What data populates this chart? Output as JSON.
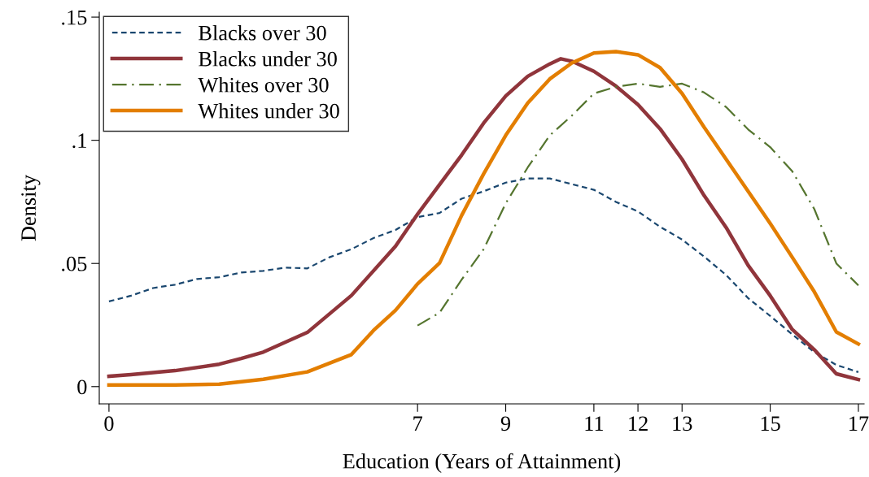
{
  "chart_data": {
    "type": "line",
    "xlabel": "Education (Years of Attainment)",
    "ylabel": "Density",
    "xlim": [
      -0.22,
      17.13
    ],
    "ylim": [
      -0.007,
      0.152
    ],
    "xticks": [
      0,
      7,
      9,
      11,
      12,
      13,
      15,
      17
    ],
    "yticks": [
      {
        "value": 0,
        "label": "0"
      },
      {
        "value": 0.05,
        "label": ".05"
      },
      {
        "value": 0.1,
        "label": ".1"
      },
      {
        "value": 0.15,
        "label": ".15"
      }
    ],
    "grid": false,
    "legend": "top left",
    "marker": "none",
    "series": [
      {
        "name": "Blacks over 30",
        "color": "#1a476f",
        "line_style": "dashed",
        "x": [
          0,
          0.5,
          1,
          1.5,
          2,
          2.5,
          3,
          3.5,
          4,
          4.5,
          5,
          5.5,
          6,
          6.5,
          7,
          7.5,
          8,
          8.5,
          9,
          9.5,
          10,
          10.5,
          11,
          11.5,
          12,
          12.5,
          13,
          13.5,
          14,
          14.5,
          15,
          15.5,
          16,
          16.5,
          17
        ],
        "values": [
          0.0346,
          0.0369,
          0.04,
          0.0414,
          0.0437,
          0.0444,
          0.0463,
          0.047,
          0.0483,
          0.048,
          0.0525,
          0.0558,
          0.0603,
          0.0636,
          0.0688,
          0.0705,
          0.0763,
          0.0793,
          0.0828,
          0.0845,
          0.0845,
          0.0822,
          0.0799,
          0.075,
          0.0711,
          0.0649,
          0.0597,
          0.0528,
          0.0453,
          0.0359,
          0.0287,
          0.0212,
          0.014,
          0.0088,
          0.0059
        ]
      },
      {
        "name": "Blacks under 30",
        "color": "#90353b",
        "line_style": "solid",
        "x": [
          0,
          0.5,
          1.5,
          2.5,
          3,
          3.5,
          4.5,
          5.5,
          6.5,
          7,
          7.5,
          8,
          8.5,
          9,
          9.5,
          10,
          10.25,
          10.5,
          11,
          11.5,
          12,
          12.5,
          13,
          13.5,
          14,
          14.5,
          15,
          15.5,
          16,
          16.5,
          17
        ],
        "values": [
          0.0042,
          0.0049,
          0.0065,
          0.0091,
          0.0114,
          0.014,
          0.022,
          0.037,
          0.057,
          0.07,
          0.082,
          0.094,
          0.107,
          0.118,
          0.126,
          0.131,
          0.1331,
          0.1321,
          0.128,
          0.122,
          0.1145,
          0.1047,
          0.0923,
          0.0776,
          0.0646,
          0.0492,
          0.0369,
          0.0232,
          0.015,
          0.0052,
          0.0029
        ]
      },
      {
        "name": "Whites over 30",
        "color": "#55752f",
        "line_style": "dashdot",
        "x": [
          7,
          7.5,
          8,
          8.5,
          9,
          9.5,
          10,
          10.5,
          11,
          11.5,
          12,
          12.5,
          13,
          13.5,
          14,
          14.5,
          15,
          15.5,
          16,
          16.5,
          17
        ],
        "values": [
          0.0248,
          0.03,
          0.0434,
          0.0558,
          0.0744,
          0.089,
          0.102,
          0.11,
          0.119,
          0.1217,
          0.123,
          0.1217,
          0.123,
          0.1194,
          0.1135,
          0.1044,
          0.0972,
          0.0874,
          0.0721,
          0.05,
          0.0411
        ]
      },
      {
        "name": "Whites under 30",
        "color": "#e37e00",
        "line_style": "solid",
        "x": [
          0,
          1.5,
          2.5,
          3.5,
          4.5,
          5.5,
          6,
          6.5,
          7,
          7.5,
          8,
          8.5,
          9,
          9.5,
          10,
          10.5,
          11,
          11.5,
          12,
          12.5,
          13,
          13.5,
          14,
          14.5,
          15,
          15.5,
          16,
          16.5,
          17
        ],
        "values": [
          0.0007,
          0.0007,
          0.001,
          0.003,
          0.006,
          0.013,
          0.0228,
          0.031,
          0.0417,
          0.0502,
          0.0695,
          0.0864,
          0.102,
          0.1151,
          0.1249,
          0.1314,
          0.1354,
          0.136,
          0.1347,
          0.1295,
          0.119,
          0.1053,
          0.0923,
          0.0793,
          0.0662,
          0.0525,
          0.0385,
          0.0222,
          0.0173
        ]
      }
    ]
  }
}
